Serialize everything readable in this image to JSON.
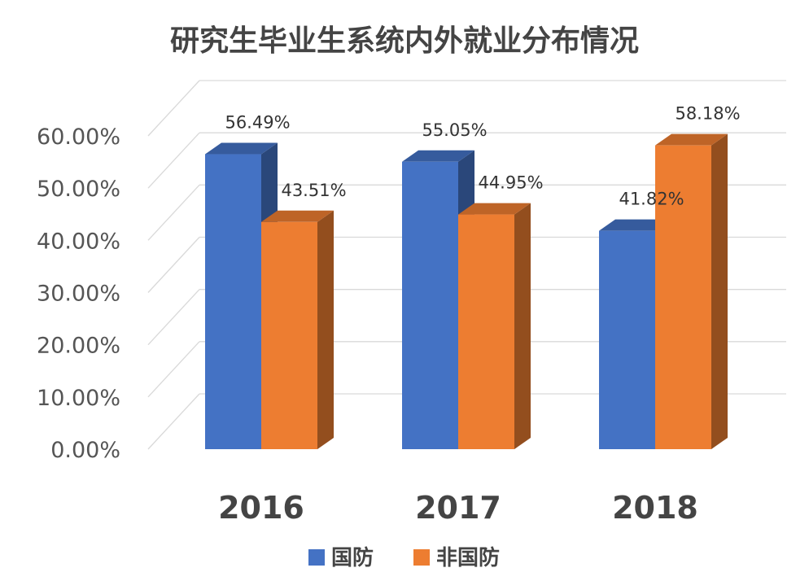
{
  "chart_data": {
    "type": "bar",
    "title": "研究生毕业生系统内外就业分布情况",
    "categories": [
      "2016",
      "2017",
      "2018"
    ],
    "series": [
      {
        "name": "国防",
        "values": [
          56.49,
          55.05,
          41.82
        ],
        "labels": [
          "56.49%",
          "55.05%",
          "41.82%"
        ],
        "color": "#4472C4"
      },
      {
        "name": "非国防",
        "values": [
          43.51,
          44.95,
          58.18
        ],
        "labels": [
          "43.51%",
          "44.95%",
          "58.18%"
        ],
        "color": "#ED7D31"
      }
    ],
    "ylim": [
      0,
      60
    ],
    "yticks": [
      "0.00%",
      "10.00%",
      "20.00%",
      "30.00%",
      "40.00%",
      "50.00%",
      "60.00%"
    ],
    "xlabel": "",
    "ylabel": "",
    "grid": true,
    "legend": "bottom",
    "style": "3d"
  }
}
